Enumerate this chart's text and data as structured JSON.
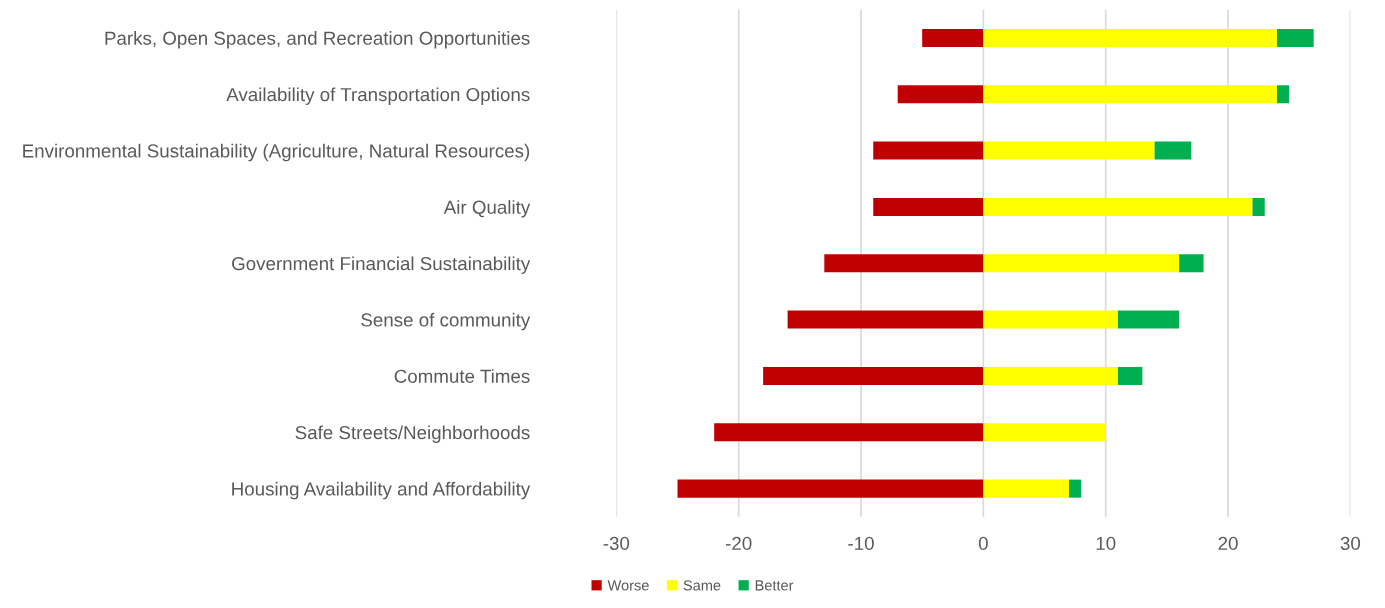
{
  "chart_data": {
    "type": "bar",
    "orientation": "horizontal",
    "stacked": true,
    "categories": [
      "Parks, Open Spaces, and Recreation Opportunities",
      "Availability of Transportation Options",
      "Environmental Sustainability (Agriculture, Natural Resources)",
      "Air Quality",
      "Government Financial Sustainability",
      "Sense of community",
      "Commute Times",
      "Safe Streets/Neighborhoods",
      "Housing Availability and Affordability"
    ],
    "series": [
      {
        "name": "Worse",
        "color": "#c00000",
        "values": [
          -5,
          -7,
          -9,
          -9,
          -13,
          -16,
          -18,
          -22,
          -25
        ]
      },
      {
        "name": "Same",
        "color": "#ffff00",
        "values": [
          24,
          24,
          14,
          22,
          16,
          11,
          11,
          10,
          7
        ]
      },
      {
        "name": "Better",
        "color": "#00b050",
        "values": [
          3,
          1,
          3,
          1,
          2,
          5,
          2,
          0,
          1
        ]
      }
    ],
    "xlim": [
      -30,
      30
    ],
    "xticks": [
      -30,
      -20,
      -10,
      0,
      10,
      20,
      30
    ],
    "grid": "x",
    "legend": "bottom"
  }
}
